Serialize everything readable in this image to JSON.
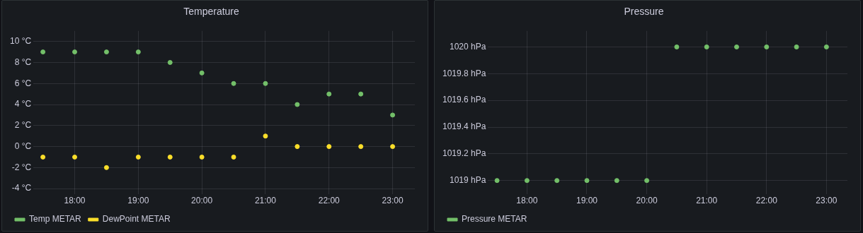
{
  "chart_data": [
    {
      "type": "scatter",
      "title": "Temperature",
      "x": [
        17.5,
        18,
        18.5,
        19,
        19.5,
        20,
        20.5,
        21,
        21.5,
        22,
        22.5,
        23
      ],
      "xlim": [
        17.35,
        23.35
      ],
      "xticks": [
        {
          "value": 18,
          "label": "18:00"
        },
        {
          "value": 19,
          "label": "19:00"
        },
        {
          "value": 20,
          "label": "20:00"
        },
        {
          "value": 21,
          "label": "21:00"
        },
        {
          "value": 22,
          "label": "22:00"
        },
        {
          "value": 23,
          "label": "23:00"
        }
      ],
      "ylim": [
        -4.5,
        11
      ],
      "yticks": [
        {
          "value": -4,
          "label": "-4 °C"
        },
        {
          "value": -2,
          "label": "-2 °C"
        },
        {
          "value": 0,
          "label": "0 °C"
        },
        {
          "value": 2,
          "label": "2 °C"
        },
        {
          "value": 4,
          "label": "4 °C"
        },
        {
          "value": 6,
          "label": "6 °C"
        },
        {
          "value": 8,
          "label": "8 °C"
        },
        {
          "value": 10,
          "label": "10 °C"
        }
      ],
      "series": [
        {
          "name": "Temp METAR",
          "color": "#73bf69",
          "values": [
            9,
            9,
            9,
            9,
            8,
            7,
            6,
            6,
            4,
            5,
            5,
            3
          ]
        },
        {
          "name": "DewPoint METAR",
          "color": "#fade2a",
          "values": [
            -1,
            -1,
            -2,
            -1,
            -1,
            -1,
            -1,
            1,
            0,
            0,
            0,
            0
          ]
        }
      ],
      "grid": true,
      "legend": "bottom",
      "marker": "circle"
    },
    {
      "type": "scatter",
      "title": "Pressure",
      "x": [
        17.5,
        18,
        18.5,
        19,
        19.5,
        20,
        20.5,
        21,
        21.5,
        22,
        22.5,
        23
      ],
      "xlim": [
        17.35,
        23.35
      ],
      "xticks": [
        {
          "value": 18,
          "label": "18:00"
        },
        {
          "value": 19,
          "label": "19:00"
        },
        {
          "value": 20,
          "label": "20:00"
        },
        {
          "value": 21,
          "label": "21:00"
        },
        {
          "value": 22,
          "label": "22:00"
        },
        {
          "value": 23,
          "label": "23:00"
        }
      ],
      "ylim": [
        1018.9,
        1020.12
      ],
      "yticks": [
        {
          "value": 1019,
          "label": "1019 hPa"
        },
        {
          "value": 1019.2,
          "label": "1019.2 hPa"
        },
        {
          "value": 1019.4,
          "label": "1019.4 hPa"
        },
        {
          "value": 1019.6,
          "label": "1019.6 hPa"
        },
        {
          "value": 1019.8,
          "label": "1019.8 hPa"
        },
        {
          "value": 1020,
          "label": "1020 hPa"
        }
      ],
      "series": [
        {
          "name": "Pressure METAR",
          "color": "#73bf69",
          "values": [
            1019,
            1019,
            1019,
            1019,
            1019,
            1019,
            1020,
            1020,
            1020,
            1020,
            1020,
            1020
          ]
        }
      ],
      "grid": true,
      "legend": "bottom",
      "marker": "circle"
    }
  ]
}
